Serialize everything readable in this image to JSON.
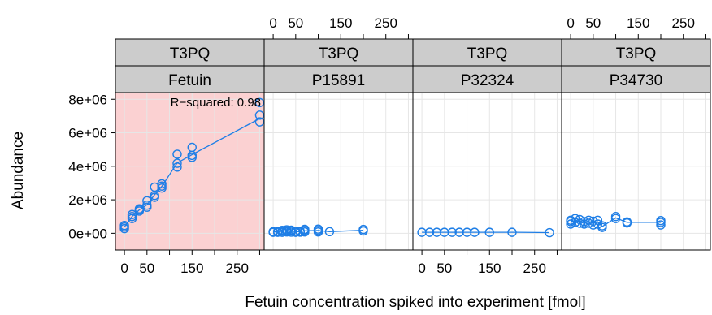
{
  "chart_data": {
    "type": "scatter",
    "xlabel": "Fetuin concentration spiked into experiment [fmol]",
    "ylabel": "Abundance",
    "xlim": [
      -20,
      310
    ],
    "ylim": [
      -1000000,
      8400000
    ],
    "x_ticks": [
      0,
      50,
      150,
      250
    ],
    "x_tick_labels": [
      "0",
      "50",
      "150",
      "250"
    ],
    "y_ticks": [
      0,
      2000000,
      4000000,
      6000000,
      8000000
    ],
    "y_tick_labels": [
      "0e+00",
      "2e+06",
      "4e+06",
      "6e+06",
      "8e+06"
    ],
    "x_grid": [
      0,
      50,
      100,
      150,
      200,
      250,
      300
    ],
    "grid": true,
    "point_color": "#1e7ee6",
    "line_color": "#1e7ee6",
    "highlight_color": "#fbd1d2",
    "strip_color": "#cccccc",
    "grid_color": "#e6e6e6",
    "panels": [
      {
        "strip_top": "T3PQ",
        "strip_bottom": "Fetuin",
        "highlight": true,
        "annotation": "R−squared: 0.98",
        "points": [
          [
            0,
            280000
          ],
          [
            0,
            380000
          ],
          [
            0,
            470000
          ],
          [
            17,
            880000
          ],
          [
            17,
            1000000
          ],
          [
            17,
            1120000
          ],
          [
            33,
            1330000
          ],
          [
            33,
            1400000
          ],
          [
            33,
            1460000
          ],
          [
            50,
            1560000
          ],
          [
            50,
            1680000
          ],
          [
            50,
            1940000
          ],
          [
            67,
            2150000
          ],
          [
            67,
            2260000
          ],
          [
            67,
            2760000
          ],
          [
            83,
            2700000
          ],
          [
            83,
            2820000
          ],
          [
            83,
            2950000
          ],
          [
            117,
            3950000
          ],
          [
            117,
            4180000
          ],
          [
            117,
            4720000
          ],
          [
            150,
            4530000
          ],
          [
            150,
            4650000
          ],
          [
            150,
            5130000
          ],
          [
            300,
            6650000
          ],
          [
            300,
            7050000
          ],
          [
            300,
            7800000
          ]
        ],
        "line": [
          [
            0,
            380000
          ],
          [
            17,
            1000000
          ],
          [
            33,
            1400000
          ],
          [
            50,
            1700000
          ],
          [
            67,
            2300000
          ],
          [
            83,
            2800000
          ],
          [
            117,
            4200000
          ],
          [
            150,
            4700000
          ],
          [
            300,
            6850000
          ]
        ]
      },
      {
        "strip_top": "T3PQ",
        "strip_bottom": "P15891",
        "highlight": false,
        "points": [
          [
            0,
            60000
          ],
          [
            0,
            100000
          ],
          [
            10,
            60000
          ],
          [
            10,
            110000
          ],
          [
            20,
            60000
          ],
          [
            20,
            130000
          ],
          [
            20,
            180000
          ],
          [
            30,
            80000
          ],
          [
            30,
            150000
          ],
          [
            30,
            210000
          ],
          [
            40,
            70000
          ],
          [
            40,
            140000
          ],
          [
            40,
            190000
          ],
          [
            50,
            60000
          ],
          [
            50,
            130000
          ],
          [
            60,
            70000
          ],
          [
            60,
            120000
          ],
          [
            70,
            80000
          ],
          [
            70,
            170000
          ],
          [
            70,
            240000
          ],
          [
            100,
            80000
          ],
          [
            100,
            170000
          ],
          [
            100,
            250000
          ],
          [
            125,
            100000
          ],
          [
            200,
            140000
          ],
          [
            200,
            230000
          ]
        ],
        "line": [
          [
            0,
            80000
          ],
          [
            10,
            85000
          ],
          [
            20,
            120000
          ],
          [
            30,
            140000
          ],
          [
            40,
            130000
          ],
          [
            50,
            100000
          ],
          [
            60,
            95000
          ],
          [
            70,
            150000
          ],
          [
            100,
            170000
          ],
          [
            125,
            100000
          ],
          [
            200,
            180000
          ]
        ]
      },
      {
        "strip_top": "T3PQ",
        "strip_bottom": "P32324",
        "highlight": false,
        "points": [
          [
            0,
            60000
          ],
          [
            17,
            60000
          ],
          [
            33,
            60000
          ],
          [
            50,
            60000
          ],
          [
            67,
            60000
          ],
          [
            83,
            60000
          ],
          [
            100,
            60000
          ],
          [
            117,
            60000
          ],
          [
            150,
            60000
          ],
          [
            200,
            60000
          ],
          [
            283,
            40000
          ]
        ],
        "line": [
          [
            0,
            60000
          ],
          [
            50,
            60000
          ],
          [
            100,
            60000
          ],
          [
            150,
            60000
          ],
          [
            200,
            60000
          ],
          [
            283,
            40000
          ]
        ]
      },
      {
        "strip_top": "T3PQ",
        "strip_bottom": "P34730",
        "highlight": false,
        "points": [
          [
            0,
            550000
          ],
          [
            0,
            700000
          ],
          [
            0,
            780000
          ],
          [
            10,
            650000
          ],
          [
            10,
            880000
          ],
          [
            20,
            600000
          ],
          [
            20,
            820000
          ],
          [
            30,
            550000
          ],
          [
            30,
            700000
          ],
          [
            40,
            600000
          ],
          [
            40,
            780000
          ],
          [
            50,
            500000
          ],
          [
            50,
            720000
          ],
          [
            60,
            550000
          ],
          [
            60,
            780000
          ],
          [
            70,
            350000
          ],
          [
            70,
            450000
          ],
          [
            100,
            880000
          ],
          [
            100,
            1000000
          ],
          [
            125,
            620000
          ],
          [
            125,
            680000
          ],
          [
            200,
            500000
          ],
          [
            200,
            650000
          ],
          [
            200,
            760000
          ]
        ],
        "line": [
          [
            0,
            700000
          ],
          [
            10,
            760000
          ],
          [
            20,
            700000
          ],
          [
            30,
            620000
          ],
          [
            40,
            680000
          ],
          [
            50,
            620000
          ],
          [
            60,
            660000
          ],
          [
            70,
            400000
          ],
          [
            100,
            920000
          ],
          [
            125,
            650000
          ],
          [
            200,
            650000
          ]
        ]
      }
    ]
  }
}
